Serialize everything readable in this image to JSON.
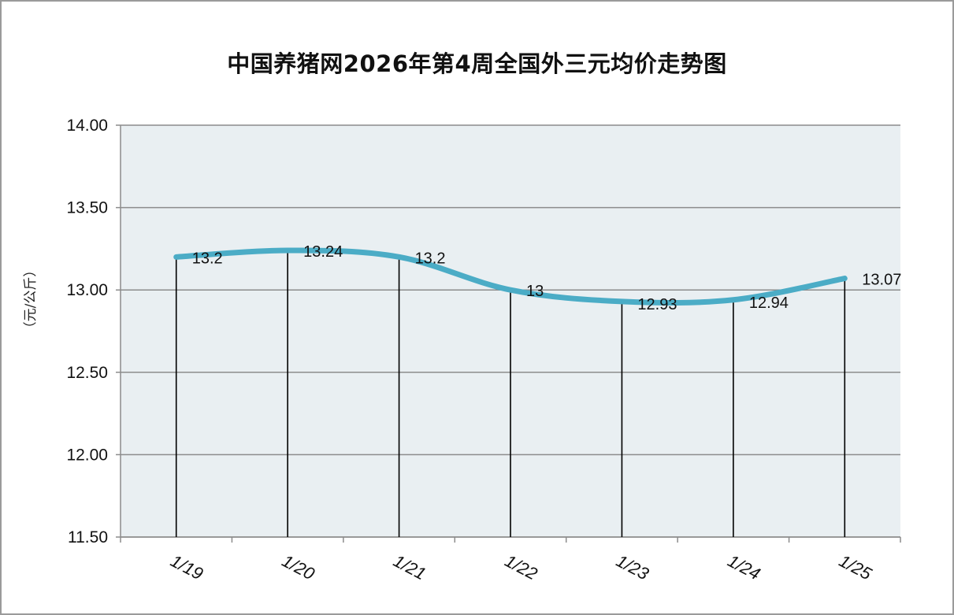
{
  "chart_data": {
    "type": "line",
    "title": "中国养猪网2026年第4周全国外三元均价走势图",
    "ylabel": "（元/公斤）",
    "xlabel": "",
    "categories": [
      "1/19",
      "1/20",
      "1/21",
      "1/22",
      "1/23",
      "1/24",
      "1/25"
    ],
    "series": [
      {
        "values": [
          13.2,
          13.24,
          13.2,
          13.0,
          12.93,
          12.94,
          13.07
        ]
      }
    ],
    "data_labels": [
      "13.2",
      "13.24",
      "13.2",
      "13",
      "12.93",
      "12.94",
      "13.07"
    ],
    "ylim": [
      11.5,
      14.0
    ],
    "yticks": [
      "11.50",
      "12.00",
      "12.50",
      "13.00",
      "13.50",
      "14.00"
    ],
    "grid": true,
    "drop_lines": true,
    "colors": {
      "line": "#4bacc6",
      "plot_background": "#e9eff2",
      "grid": "#8c8c8c",
      "drop_line": "#000000"
    }
  }
}
